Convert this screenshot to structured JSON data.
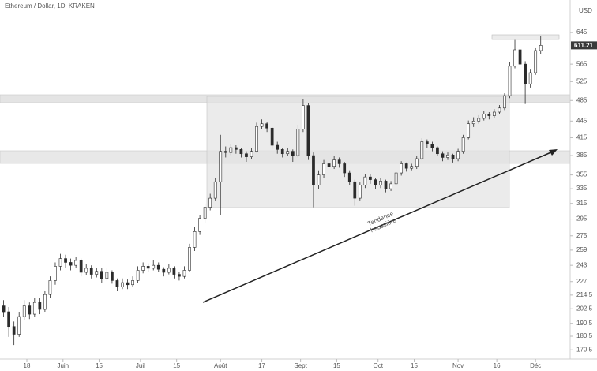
{
  "chart_data": {
    "type": "candlestick",
    "title": "Ethereum / Dollar, 1D, KRAKEN",
    "currency": "USD",
    "log_scale": true,
    "grid": false,
    "up_color": "#ffffff",
    "down_color": "#2b2b2b",
    "edge_color": "#2b2b2b",
    "trend_label": [
      "Tendance",
      "haussière"
    ],
    "x": [
      -3,
      -1,
      1,
      3,
      5,
      7,
      9,
      11,
      13,
      15,
      17,
      19,
      21,
      23,
      25,
      27,
      29,
      31,
      33,
      35,
      37,
      39,
      41,
      43,
      45,
      47,
      49,
      51,
      53,
      55,
      57,
      59,
      61,
      63,
      65,
      67,
      69,
      71,
      73,
      75,
      77,
      79,
      81,
      83,
      85,
      87,
      89,
      91,
      93,
      95,
      97,
      99,
      101,
      103,
      105,
      107,
      109,
      111,
      113,
      115,
      117,
      119,
      121,
      123,
      125,
      127,
      129,
      131,
      133,
      135,
      137,
      139,
      141,
      143,
      145,
      147,
      149,
      151,
      153,
      155,
      157,
      159,
      161,
      163,
      165,
      167,
      169,
      171,
      173,
      175,
      177,
      179,
      181,
      183,
      185,
      187,
      189,
      191,
      193,
      195,
      197,
      199,
      201,
      203,
      205
    ],
    "open": [
      205,
      200,
      188,
      182,
      196,
      205,
      198,
      208,
      202,
      215,
      228,
      242,
      250,
      246,
      243,
      248,
      236,
      240,
      234,
      237,
      230,
      236,
      228,
      222,
      226,
      224,
      228,
      238,
      242,
      240,
      243,
      239,
      236,
      240,
      234,
      232,
      238,
      262,
      280,
      296,
      310,
      322,
      345,
      392,
      390,
      398,
      395,
      388,
      383,
      392,
      435,
      440,
      432,
      402,
      395,
      388,
      392,
      385,
      430,
      475,
      385,
      340,
      355,
      372,
      368,
      378,
      372,
      358,
      345,
      322,
      340,
      352,
      348,
      340,
      346,
      335,
      342,
      358,
      372,
      365,
      368,
      380,
      408,
      404,
      398,
      388,
      382,
      386,
      380,
      392,
      415,
      440,
      445,
      450,
      458,
      455,
      462,
      470,
      495,
      560,
      600,
      565,
      520,
      545,
      598
    ],
    "high": [
      210,
      204,
      192,
      200,
      210,
      208,
      212,
      212,
      218,
      232,
      246,
      255,
      254,
      250,
      252,
      250,
      244,
      243,
      240,
      240,
      240,
      238,
      230,
      230,
      229,
      232,
      242,
      246,
      245,
      248,
      246,
      241,
      244,
      242,
      236,
      242,
      266,
      285,
      300,
      315,
      328,
      350,
      420,
      400,
      404,
      402,
      398,
      392,
      398,
      442,
      448,
      444,
      434,
      408,
      398,
      398,
      395,
      438,
      488,
      480,
      390,
      362,
      378,
      376,
      384,
      382,
      375,
      362,
      348,
      344,
      356,
      356,
      350,
      350,
      348,
      346,
      362,
      376,
      374,
      372,
      384,
      414,
      412,
      408,
      400,
      392,
      390,
      388,
      396,
      420,
      446,
      452,
      456,
      464,
      462,
      468,
      476,
      500,
      570,
      625,
      610,
      572,
      552,
      604,
      635
    ],
    "low": [
      196,
      180,
      174,
      180,
      193,
      194,
      196,
      198,
      200,
      212,
      224,
      238,
      240,
      238,
      240,
      232,
      233,
      230,
      231,
      226,
      228,
      225,
      218,
      220,
      220,
      222,
      226,
      235,
      236,
      238,
      236,
      232,
      234,
      230,
      228,
      230,
      236,
      258,
      276,
      290,
      306,
      318,
      300,
      382,
      386,
      388,
      382,
      375,
      380,
      390,
      430,
      425,
      396,
      388,
      382,
      384,
      375,
      382,
      425,
      378,
      310,
      335,
      350,
      362,
      364,
      366,
      352,
      340,
      312,
      318,
      336,
      342,
      335,
      336,
      330,
      332,
      340,
      354,
      360,
      362,
      364,
      378,
      398,
      392,
      384,
      376,
      378,
      374,
      376,
      388,
      412,
      434,
      440,
      446,
      448,
      450,
      458,
      466,
      490,
      555,
      555,
      478,
      512,
      540,
      590
    ],
    "close": [
      200,
      188,
      182,
      196,
      205,
      198,
      208,
      202,
      215,
      228,
      242,
      250,
      246,
      243,
      248,
      236,
      240,
      234,
      237,
      230,
      236,
      228,
      222,
      226,
      224,
      228,
      238,
      242,
      240,
      243,
      239,
      236,
      240,
      234,
      232,
      238,
      262,
      280,
      296,
      310,
      322,
      345,
      392,
      390,
      398,
      395,
      388,
      383,
      392,
      435,
      440,
      432,
      402,
      395,
      388,
      392,
      385,
      430,
      475,
      385,
      340,
      355,
      372,
      368,
      378,
      372,
      358,
      345,
      322,
      340,
      352,
      348,
      340,
      346,
      335,
      342,
      358,
      372,
      365,
      368,
      380,
      408,
      404,
      398,
      388,
      382,
      386,
      380,
      392,
      415,
      440,
      445,
      450,
      458,
      455,
      462,
      470,
      495,
      560,
      600,
      565,
      520,
      545,
      598,
      611.21
    ],
    "xlim": [
      -4.4,
      216.4
    ],
    "xticks": [
      {
        "value": 6,
        "label": "18"
      },
      {
        "value": 20,
        "label": "Juin"
      },
      {
        "value": 34,
        "label": "15"
      },
      {
        "value": 50,
        "label": "Juil"
      },
      {
        "value": 64,
        "label": "15"
      },
      {
        "value": 81,
        "label": "Août"
      },
      {
        "value": 97,
        "label": "17"
      },
      {
        "value": 112,
        "label": "Sept"
      },
      {
        "value": 126,
        "label": "15"
      },
      {
        "value": 142,
        "label": "Oct"
      },
      {
        "value": 156,
        "label": "15"
      },
      {
        "value": 173,
        "label": "Nov"
      },
      {
        "value": 188,
        "label": "16"
      },
      {
        "value": 203,
        "label": "Déc"
      }
    ],
    "ylim": [
      164,
      739
    ],
    "yticks": [
      645,
      565,
      525,
      485,
      445,
      415,
      385,
      355,
      335,
      315,
      295,
      275,
      259,
      243,
      227,
      214.5,
      202.5,
      190.5,
      180.5,
      170.5
    ]
  }
}
